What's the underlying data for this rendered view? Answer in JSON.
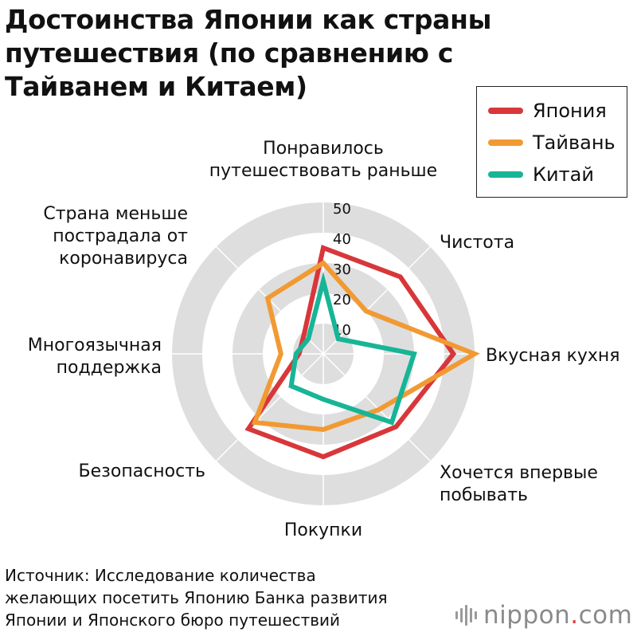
{
  "title_lines": [
    "Достоинства Японии как страны",
    "путешествия (по сравнению с",
    "Тайванем и Китаем)"
  ],
  "source_lines": [
    "Источник: Исследование количества",
    "желающих посетить Японию Банка развития",
    "Японии и Японского бюро путешествий"
  ],
  "logo": {
    "name": "nippon",
    "dot": ".",
    "suffix": "com"
  },
  "chart_data": {
    "type": "radar",
    "axes": [
      [
        "Понравилось",
        "путешествовать раньше"
      ],
      [
        "Чистота"
      ],
      [
        "Вкусная кухня"
      ],
      [
        "Хочется впервые",
        "побывать"
      ],
      [
        "Покупки"
      ],
      [
        "Безопасность"
      ],
      [
        "Многоязычная",
        "поддержка"
      ],
      [
        "Страна меньше",
        "пострадала от",
        "коронавируса"
      ]
    ],
    "r_ticks": [
      10,
      20,
      30,
      40,
      50
    ],
    "rlim": [
      0,
      50
    ],
    "legend_position": "top-right",
    "series": [
      {
        "name": "Япония",
        "color": "#d8373a",
        "values": [
          35,
          36,
          43,
          34,
          34,
          35,
          8,
          9
        ]
      },
      {
        "name": "Тайвань",
        "color": "#f19a33",
        "values": [
          30,
          20,
          50,
          26,
          25,
          32,
          14,
          26
        ]
      },
      {
        "name": "Китай",
        "color": "#17b596",
        "values": [
          24,
          7,
          30,
          32,
          15,
          15,
          9,
          7
        ]
      }
    ]
  }
}
